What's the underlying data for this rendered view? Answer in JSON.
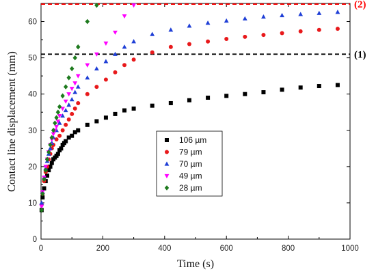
{
  "chart_data": {
    "type": "scatter",
    "xlabel": "Time (s)",
    "ylabel": "Contact line displacement  (mm)",
    "xlim": [
      0,
      1000
    ],
    "ylim": [
      0,
      65
    ],
    "xticks": [
      0,
      200,
      400,
      600,
      800,
      1000
    ],
    "yticks": [
      0,
      10,
      20,
      30,
      40,
      50,
      60
    ],
    "grid": false,
    "legend_position": "center",
    "reference_lines": [
      {
        "label": "(2)",
        "y": 64.8,
        "color": "#ff0000",
        "style": "dashed"
      },
      {
        "label": "(1)",
        "y": 51.0,
        "color": "#000000",
        "style": "dashed"
      }
    ],
    "series": [
      {
        "name": "106 µm",
        "marker": "square",
        "color": "#000000",
        "x": [
          2,
          5,
          10,
          15,
          20,
          25,
          30,
          35,
          40,
          45,
          50,
          55,
          60,
          65,
          70,
          75,
          80,
          90,
          100,
          110,
          120,
          150,
          180,
          210,
          240,
          270,
          300,
          360,
          420,
          480,
          540,
          600,
          660,
          720,
          780,
          840,
          900,
          960
        ],
        "y": [
          8,
          11.5,
          14,
          16,
          17.5,
          19,
          20,
          21,
          22,
          22.5,
          23,
          23.5,
          24.5,
          25,
          26,
          26.5,
          27,
          28,
          28.5,
          29.5,
          30,
          31.5,
          32.5,
          33.5,
          34.5,
          35.5,
          36,
          36.8,
          37.5,
          38.3,
          39,
          39.5,
          40,
          40.5,
          41.2,
          41.8,
          42.2,
          42.5
        ]
      },
      {
        "name": "79 µm",
        "marker": "circle",
        "color": "#e8191b",
        "x": [
          2,
          5,
          10,
          15,
          20,
          25,
          30,
          35,
          40,
          50,
          60,
          70,
          80,
          90,
          100,
          110,
          120,
          150,
          180,
          210,
          240,
          270,
          300,
          360,
          420,
          480,
          540,
          600,
          660,
          720,
          780,
          840,
          900,
          960
        ],
        "y": [
          9.5,
          12.5,
          16,
          18.5,
          20,
          22,
          23.5,
          25,
          26,
          27.5,
          28.5,
          30,
          31.5,
          33,
          34.5,
          36,
          37.5,
          40,
          42,
          44,
          46,
          48,
          49.5,
          51.5,
          53,
          53.8,
          54.5,
          55.2,
          55.8,
          56.3,
          56.8,
          57.3,
          57.7,
          58
        ]
      },
      {
        "name": "70 µm",
        "marker": "triangle-up",
        "color": "#1f3fd6",
        "x": [
          2,
          5,
          10,
          15,
          20,
          25,
          30,
          35,
          40,
          50,
          60,
          70,
          80,
          90,
          100,
          110,
          120,
          150,
          180,
          210,
          240,
          270,
          300,
          360,
          420,
          480,
          540,
          600,
          660,
          720,
          780,
          840,
          900,
          960
        ],
        "y": [
          10,
          13,
          17,
          19.5,
          21.5,
          23.5,
          25,
          26.5,
          28,
          30,
          32,
          34,
          35.5,
          37,
          38.5,
          40.5,
          42,
          44.5,
          47,
          49,
          51,
          53,
          54.5,
          56.5,
          57.7,
          58.8,
          59.6,
          60.2,
          60.8,
          61.3,
          61.7,
          62,
          62.3,
          62.6
        ]
      },
      {
        "name": "49 µm",
        "marker": "triangle-down",
        "color": "#ff00ff",
        "x": [
          2,
          5,
          10,
          15,
          20,
          25,
          30,
          35,
          40,
          45,
          50,
          55,
          60,
          70,
          80,
          90,
          100,
          110,
          120,
          150,
          180,
          210,
          240,
          270,
          300
        ],
        "y": [
          9,
          13,
          17,
          20,
          22,
          24,
          26,
          27.5,
          29,
          30,
          31,
          32.5,
          34,
          36,
          38,
          40,
          41.5,
          43,
          45,
          48,
          51,
          54,
          57,
          61.5,
          64.5
        ]
      },
      {
        "name": "28 µm",
        "marker": "diamond",
        "color": "#1e7a1e",
        "x": [
          2,
          5,
          10,
          15,
          20,
          25,
          30,
          35,
          40,
          45,
          50,
          55,
          60,
          70,
          80,
          90,
          100,
          110,
          120,
          150,
          180
        ],
        "y": [
          8,
          12.5,
          16.5,
          19,
          22,
          24,
          26,
          28,
          30,
          32,
          33.5,
          35,
          36.5,
          39.5,
          42,
          44.5,
          47,
          50,
          53,
          60,
          64.5
        ]
      }
    ]
  }
}
